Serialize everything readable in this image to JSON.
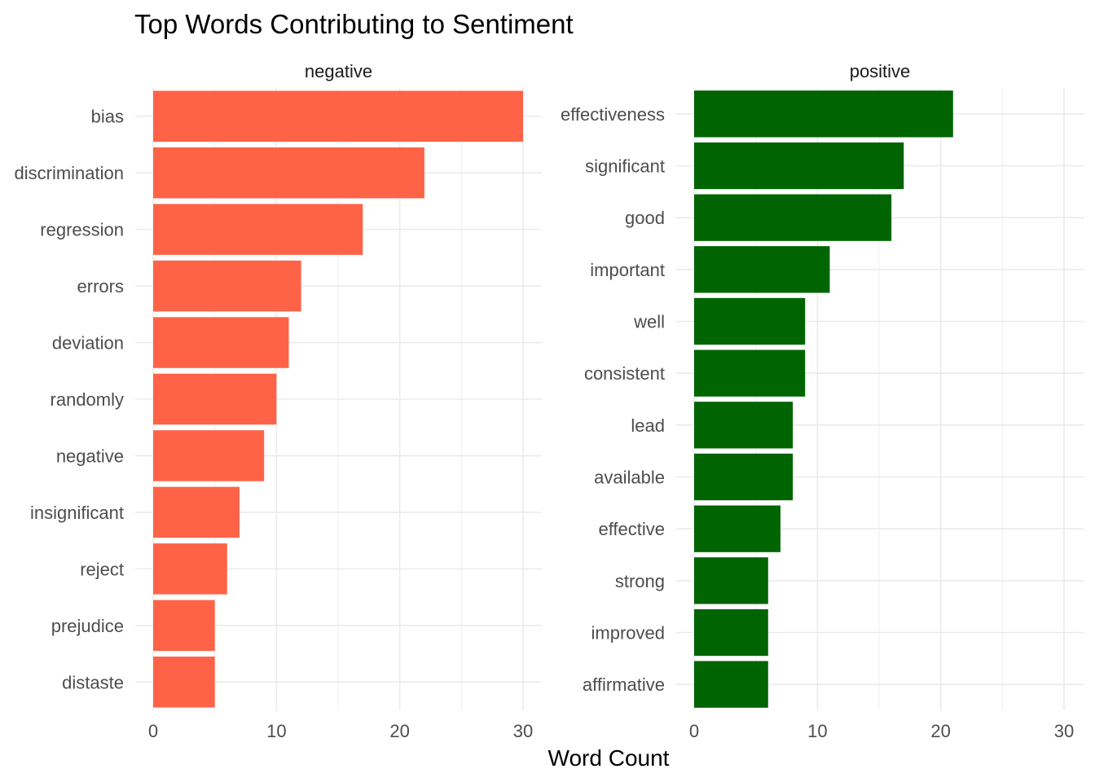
{
  "chart_data": {
    "type": "bar",
    "orientation": "horizontal",
    "title": "Top Words Contributing to Sentiment",
    "xlabel": "Word Count",
    "ylabel": "",
    "xlim": [
      0,
      30
    ],
    "x_ticks": [
      "0",
      "10",
      "20",
      "30"
    ],
    "grid": true,
    "facets": [
      {
        "name": "negative",
        "color": "#FF6347",
        "categories": [
          "bias",
          "discrimination",
          "regression",
          "errors",
          "deviation",
          "randomly",
          "negative",
          "insignificant",
          "reject",
          "prejudice",
          "distaste"
        ],
        "values": [
          30,
          22,
          17,
          12,
          11,
          10,
          9,
          7,
          6,
          5,
          5
        ]
      },
      {
        "name": "positive",
        "color": "#006400",
        "categories": [
          "effectiveness",
          "significant",
          "good",
          "important",
          "well",
          "consistent",
          "lead",
          "available",
          "effective",
          "strong",
          "improved",
          "affirmative"
        ],
        "values": [
          21,
          17,
          16,
          11,
          9,
          9,
          8,
          8,
          7,
          6,
          6,
          6
        ]
      }
    ]
  }
}
